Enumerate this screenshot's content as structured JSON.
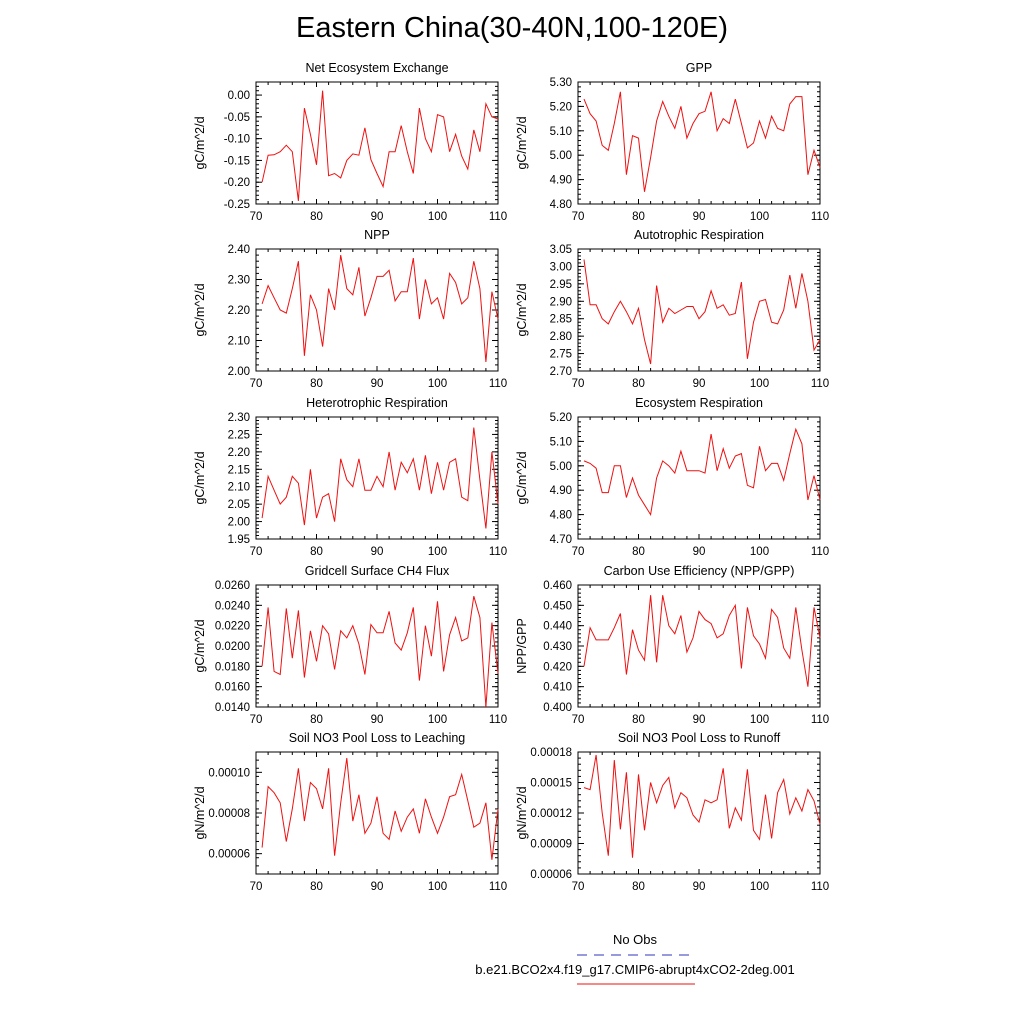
{
  "page": {
    "title": "Eastern China(30-40N,100-120E)",
    "line_color": "#ee1111",
    "obs_color": "#3333bb"
  },
  "legend": {
    "obs_label": "No Obs",
    "run_label": "b.e21.BCO2x4.f19_g17.CMIP6-abrupt4xCO2-2deg.001"
  },
  "chart_data": [
    {
      "type": "line",
      "title": "Net Ecosystem Exchange",
      "ylabel": "gC/m^2/d",
      "xlim": [
        70,
        110
      ],
      "ylim": [
        -0.25,
        0.03
      ],
      "xticks": [
        70,
        80,
        90,
        100,
        110
      ],
      "yticks": [
        -0.25,
        -0.2,
        -0.15,
        -0.1,
        -0.05,
        0.0
      ],
      "ytick_labels": [
        "-0.25",
        "-0.20",
        "-0.15",
        "-0.10",
        "-0.05",
        "0.00"
      ],
      "x": [
        71,
        72,
        73,
        74,
        75,
        76,
        77,
        78,
        79,
        80,
        81,
        82,
        83,
        84,
        85,
        86,
        87,
        88,
        89,
        90,
        91,
        92,
        93,
        94,
        95,
        96,
        97,
        98,
        99,
        100,
        101,
        102,
        103,
        104,
        105,
        106,
        107,
        108,
        109,
        110
      ],
      "values": [
        -0.2,
        -0.138,
        -0.137,
        -0.13,
        -0.115,
        -0.13,
        -0.243,
        -0.03,
        -0.09,
        -0.16,
        0.01,
        -0.185,
        -0.18,
        -0.19,
        -0.15,
        -0.135,
        -0.138,
        -0.075,
        -0.148,
        -0.18,
        -0.21,
        -0.13,
        -0.13,
        -0.07,
        -0.13,
        -0.18,
        -0.03,
        -0.1,
        -0.13,
        -0.045,
        -0.05,
        -0.13,
        -0.09,
        -0.14,
        -0.17,
        -0.08,
        -0.13,
        -0.02,
        -0.05,
        -0.055
      ]
    },
    {
      "type": "line",
      "title": "GPP",
      "ylabel": "gC/m^2/d",
      "xlim": [
        70,
        110
      ],
      "ylim": [
        4.8,
        5.3
      ],
      "xticks": [
        70,
        80,
        90,
        100,
        110
      ],
      "yticks": [
        4.8,
        4.9,
        5.0,
        5.1,
        5.2,
        5.3
      ],
      "ytick_labels": [
        "4.80",
        "4.90",
        "5.00",
        "5.10",
        "5.20",
        "5.30"
      ],
      "x": [
        71,
        72,
        73,
        74,
        75,
        76,
        77,
        78,
        79,
        80,
        81,
        82,
        83,
        84,
        85,
        86,
        87,
        88,
        89,
        90,
        91,
        92,
        93,
        94,
        95,
        96,
        97,
        98,
        99,
        100,
        101,
        102,
        103,
        104,
        105,
        106,
        107,
        108,
        109,
        110
      ],
      "values": [
        5.23,
        5.17,
        5.14,
        5.04,
        5.02,
        5.13,
        5.26,
        4.92,
        5.08,
        5.07,
        4.85,
        4.99,
        5.14,
        5.22,
        5.16,
        5.11,
        5.2,
        5.07,
        5.13,
        5.17,
        5.18,
        5.26,
        5.1,
        5.15,
        5.13,
        5.23,
        5.13,
        5.03,
        5.05,
        5.14,
        5.07,
        5.16,
        5.11,
        5.1,
        5.21,
        5.24,
        5.24,
        4.92,
        5.02,
        4.95
      ]
    },
    {
      "type": "line",
      "title": "NPP",
      "ylabel": "gC/m^2/d",
      "xlim": [
        70,
        110
      ],
      "ylim": [
        2.0,
        2.4
      ],
      "xticks": [
        70,
        80,
        90,
        100,
        110
      ],
      "yticks": [
        2.0,
        2.1,
        2.2,
        2.3,
        2.4
      ],
      "ytick_labels": [
        "2.00",
        "2.10",
        "2.20",
        "2.30",
        "2.40"
      ],
      "x": [
        71,
        72,
        73,
        74,
        75,
        76,
        77,
        78,
        79,
        80,
        81,
        82,
        83,
        84,
        85,
        86,
        87,
        88,
        89,
        90,
        91,
        92,
        93,
        94,
        95,
        96,
        97,
        98,
        99,
        100,
        101,
        102,
        103,
        104,
        105,
        106,
        107,
        108,
        109,
        110
      ],
      "values": [
        2.22,
        2.28,
        2.24,
        2.2,
        2.19,
        2.27,
        2.36,
        2.05,
        2.25,
        2.2,
        2.08,
        2.27,
        2.2,
        2.38,
        2.27,
        2.25,
        2.34,
        2.18,
        2.24,
        2.31,
        2.31,
        2.33,
        2.23,
        2.26,
        2.26,
        2.37,
        2.17,
        2.3,
        2.22,
        2.24,
        2.17,
        2.32,
        2.29,
        2.22,
        2.24,
        2.36,
        2.27,
        2.03,
        2.26,
        2.17
      ]
    },
    {
      "type": "line",
      "title": "Autotrophic Respiration",
      "ylabel": "gC/m^2/d",
      "xlim": [
        70,
        110
      ],
      "ylim": [
        2.7,
        3.05
      ],
      "xticks": [
        70,
        80,
        90,
        100,
        110
      ],
      "yticks": [
        2.7,
        2.75,
        2.8,
        2.85,
        2.9,
        2.95,
        3.0,
        3.05
      ],
      "ytick_labels": [
        "2.70",
        "2.75",
        "2.80",
        "2.85",
        "2.90",
        "2.95",
        "3.00",
        "3.05"
      ],
      "x": [
        71,
        72,
        73,
        74,
        75,
        76,
        77,
        78,
        79,
        80,
        81,
        82,
        83,
        84,
        85,
        86,
        87,
        88,
        89,
        90,
        91,
        92,
        93,
        94,
        95,
        96,
        97,
        98,
        99,
        100,
        101,
        102,
        103,
        104,
        105,
        106,
        107,
        108,
        109,
        110
      ],
      "values": [
        3.02,
        2.89,
        2.89,
        2.85,
        2.835,
        2.87,
        2.9,
        2.87,
        2.835,
        2.88,
        2.79,
        2.72,
        2.945,
        2.84,
        2.88,
        2.865,
        2.875,
        2.885,
        2.885,
        2.85,
        2.87,
        2.93,
        2.88,
        2.89,
        2.86,
        2.865,
        2.955,
        2.735,
        2.84,
        2.9,
        2.905,
        2.84,
        2.835,
        2.875,
        2.975,
        2.88,
        2.98,
        2.9,
        2.76,
        2.79
      ]
    },
    {
      "type": "line",
      "title": "Heterotrophic Respiration",
      "ylabel": "gC/m^2/d",
      "xlim": [
        70,
        110
      ],
      "ylim": [
        1.95,
        2.3
      ],
      "xticks": [
        70,
        80,
        90,
        100,
        110
      ],
      "yticks": [
        1.95,
        2.0,
        2.05,
        2.1,
        2.15,
        2.2,
        2.25,
        2.3
      ],
      "ytick_labels": [
        "1.95",
        "2.00",
        "2.05",
        "2.10",
        "2.15",
        "2.20",
        "2.25",
        "2.30"
      ],
      "x": [
        71,
        72,
        73,
        74,
        75,
        76,
        77,
        78,
        79,
        80,
        81,
        82,
        83,
        84,
        85,
        86,
        87,
        88,
        89,
        90,
        91,
        92,
        93,
        94,
        95,
        96,
        97,
        98,
        99,
        100,
        101,
        102,
        103,
        104,
        105,
        106,
        107,
        108,
        109,
        110
      ],
      "values": [
        2.01,
        2.13,
        2.09,
        2.05,
        2.07,
        2.13,
        2.11,
        1.99,
        2.15,
        2.01,
        2.07,
        2.08,
        2.0,
        2.18,
        2.12,
        2.1,
        2.18,
        2.09,
        2.09,
        2.13,
        2.1,
        2.2,
        2.09,
        2.17,
        2.14,
        2.18,
        2.09,
        2.19,
        2.08,
        2.17,
        2.09,
        2.17,
        2.18,
        2.07,
        2.06,
        2.27,
        2.12,
        1.98,
        2.2,
        2.05
      ]
    },
    {
      "type": "line",
      "title": "Ecosystem Respiration",
      "ylabel": "gC/m^2/d",
      "xlim": [
        70,
        110
      ],
      "ylim": [
        4.7,
        5.2
      ],
      "xticks": [
        70,
        80,
        90,
        100,
        110
      ],
      "yticks": [
        4.7,
        4.8,
        4.9,
        5.0,
        5.1,
        5.2
      ],
      "ytick_labels": [
        "4.70",
        "4.80",
        "4.90",
        "5.00",
        "5.10",
        "5.20"
      ],
      "x": [
        71,
        72,
        73,
        74,
        75,
        76,
        77,
        78,
        79,
        80,
        81,
        82,
        83,
        84,
        85,
        86,
        87,
        88,
        89,
        90,
        91,
        92,
        93,
        94,
        95,
        96,
        97,
        98,
        99,
        100,
        101,
        102,
        103,
        104,
        105,
        106,
        107,
        108,
        109,
        110
      ],
      "values": [
        5.02,
        5.01,
        4.99,
        4.89,
        4.89,
        5.0,
        5.0,
        4.87,
        4.95,
        4.88,
        4.84,
        4.8,
        4.95,
        5.02,
        5.0,
        4.97,
        5.06,
        4.98,
        4.98,
        4.98,
        4.97,
        5.13,
        4.98,
        5.07,
        4.99,
        5.04,
        5.05,
        4.92,
        4.91,
        5.08,
        4.98,
        5.01,
        5.01,
        4.94,
        5.05,
        5.15,
        5.09,
        4.86,
        4.96,
        4.86
      ]
    },
    {
      "type": "line",
      "title": "Gridcell Surface CH4 Flux",
      "ylabel": "gC/m^2/d",
      "xlim": [
        70,
        110
      ],
      "ylim": [
        0.014,
        0.026
      ],
      "xticks": [
        70,
        80,
        90,
        100,
        110
      ],
      "yticks": [
        0.014,
        0.016,
        0.018,
        0.02,
        0.022,
        0.024,
        0.026
      ],
      "ytick_labels": [
        "0.0140",
        "0.0160",
        "0.0180",
        "0.0200",
        "0.0220",
        "0.0240",
        "0.0260"
      ],
      "x": [
        71,
        72,
        73,
        74,
        75,
        76,
        77,
        78,
        79,
        80,
        81,
        82,
        83,
        84,
        85,
        86,
        87,
        88,
        89,
        90,
        91,
        92,
        93,
        94,
        95,
        96,
        97,
        98,
        99,
        100,
        101,
        102,
        103,
        104,
        105,
        106,
        107,
        108,
        109,
        110
      ],
      "values": [
        0.018,
        0.0238,
        0.0175,
        0.0172,
        0.0237,
        0.0188,
        0.0235,
        0.0169,
        0.0215,
        0.0185,
        0.022,
        0.0212,
        0.0177,
        0.0215,
        0.0208,
        0.022,
        0.0202,
        0.0172,
        0.0221,
        0.0213,
        0.0213,
        0.0234,
        0.0203,
        0.0196,
        0.0213,
        0.0238,
        0.0166,
        0.022,
        0.019,
        0.0244,
        0.0175,
        0.0211,
        0.0228,
        0.0205,
        0.0208,
        0.0249,
        0.0228,
        0.014,
        0.0223,
        0.0173
      ]
    },
    {
      "type": "line",
      "title": "Carbon Use Efficiency (NPP/GPP)",
      "ylabel": "NPP/GPP",
      "xlim": [
        70,
        110
      ],
      "ylim": [
        0.4,
        0.46
      ],
      "xticks": [
        70,
        80,
        90,
        100,
        110
      ],
      "yticks": [
        0.4,
        0.41,
        0.42,
        0.43,
        0.44,
        0.45,
        0.46
      ],
      "ytick_labels": [
        "0.400",
        "0.410",
        "0.420",
        "0.430",
        "0.440",
        "0.450",
        "0.460"
      ],
      "x": [
        71,
        72,
        73,
        74,
        75,
        76,
        77,
        78,
        79,
        80,
        81,
        82,
        83,
        84,
        85,
        86,
        87,
        88,
        89,
        90,
        91,
        92,
        93,
        94,
        95,
        96,
        97,
        98,
        99,
        100,
        101,
        102,
        103,
        104,
        105,
        106,
        107,
        108,
        109,
        110
      ],
      "values": [
        0.42,
        0.439,
        0.433,
        0.433,
        0.433,
        0.439,
        0.446,
        0.416,
        0.438,
        0.428,
        0.423,
        0.455,
        0.422,
        0.455,
        0.44,
        0.436,
        0.445,
        0.427,
        0.434,
        0.447,
        0.443,
        0.441,
        0.434,
        0.436,
        0.445,
        0.45,
        0.419,
        0.449,
        0.435,
        0.431,
        0.424,
        0.448,
        0.444,
        0.429,
        0.424,
        0.449,
        0.428,
        0.41,
        0.449,
        0.434
      ]
    },
    {
      "type": "line",
      "title": "Soil NO3 Pool Loss to Leaching",
      "ylabel": "gN/m^2/d",
      "xlim": [
        70,
        110
      ],
      "ylim": [
        5e-05,
        0.00011
      ],
      "xticks": [
        70,
        80,
        90,
        100,
        110
      ],
      "yticks": [
        6e-05,
        8e-05,
        0.0001
      ],
      "ytick_labels": [
        "0.00006",
        "0.00008",
        "0.00010"
      ],
      "x": [
        71,
        72,
        73,
        74,
        75,
        76,
        77,
        78,
        79,
        80,
        81,
        82,
        83,
        84,
        85,
        86,
        87,
        88,
        89,
        90,
        91,
        92,
        93,
        94,
        95,
        96,
        97,
        98,
        99,
        100,
        101,
        102,
        103,
        104,
        105,
        106,
        107,
        108,
        109,
        110
      ],
      "values": [
        6.3e-05,
        9.3e-05,
        9e-05,
        8.5e-05,
        6.6e-05,
        8.2e-05,
        0.000102,
        7.6e-05,
        9.5e-05,
        9.2e-05,
        8.2e-05,
        0.000102,
        5.9e-05,
        8.5e-05,
        0.000107,
        7.6e-05,
        8.9e-05,
        7e-05,
        7.5e-05,
        8.8e-05,
        7e-05,
        6.7e-05,
        8.1e-05,
        7.1e-05,
        7.8e-05,
        8.2e-05,
        7e-05,
        8.7e-05,
        7.8e-05,
        7e-05,
        7.8e-05,
        8.8e-05,
        8.9e-05,
        9.9e-05,
        8.6e-05,
        7.3e-05,
        7.5e-05,
        8.5e-05,
        5.7e-05,
        8.2e-05
      ]
    },
    {
      "type": "line",
      "title": "Soil NO3 Pool Loss to Runoff",
      "ylabel": "gN/m^2/d",
      "xlim": [
        70,
        110
      ],
      "ylim": [
        6e-05,
        0.00018
      ],
      "xticks": [
        70,
        80,
        90,
        100,
        110
      ],
      "yticks": [
        6e-05,
        9e-05,
        0.00012,
        0.00015,
        0.00018
      ],
      "ytick_labels": [
        "0.00006",
        "0.00009",
        "0.00012",
        "0.00015",
        "0.00018"
      ],
      "x": [
        71,
        72,
        73,
        74,
        75,
        76,
        77,
        78,
        79,
        80,
        81,
        82,
        83,
        84,
        85,
        86,
        87,
        88,
        89,
        90,
        91,
        92,
        93,
        94,
        95,
        96,
        97,
        98,
        99,
        100,
        101,
        102,
        103,
        104,
        105,
        106,
        107,
        108,
        109,
        110
      ],
      "values": [
        0.000145,
        0.000143,
        0.000177,
        0.00012,
        7.8e-05,
        0.000172,
        0.000104,
        0.00016,
        7.6e-05,
        0.000158,
        0.000103,
        0.00015,
        0.00013,
        0.000147,
        0.000155,
        0.000125,
        0.00014,
        0.000135,
        0.000118,
        0.000111,
        0.000133,
        0.00013,
        0.000133,
        0.000164,
        0.000105,
        0.000125,
        0.000113,
        0.000163,
        0.000103,
        9.4e-05,
        0.000138,
        9.5e-05,
        0.00014,
        0.000153,
        0.000119,
        0.000135,
        0.000122,
        0.000143,
        0.000132,
        0.000109
      ]
    }
  ]
}
